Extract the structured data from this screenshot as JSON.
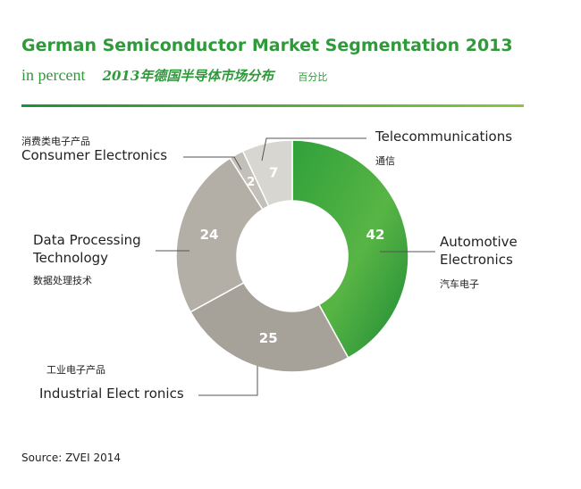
{
  "header": {
    "title": "German Semiconductor Market Segmentation 2013",
    "unit_en": "in percent",
    "title_cn": "2013年德国半导体市场分布",
    "unit_cn": "百分比"
  },
  "source": "Source: ZVEI 2014",
  "colors": {
    "title": "#2e9a3a",
    "automotive": "#4cae3a",
    "industrial": "#a6a29a",
    "data_processing": "#b3afa7",
    "consumer": "#c3c0b9",
    "telecommunications": "#d8d6d0"
  },
  "chart_data": {
    "type": "pie",
    "donut": true,
    "title": "German Semiconductor Market Segmentation 2013",
    "unit": "in percent",
    "slices": [
      {
        "name": "Automotive Electronics",
        "name_cn": "汽车电子",
        "value": 42,
        "label": "42"
      },
      {
        "name": "Industrial Electronics",
        "name_cn": "工业电子产品",
        "value": 25,
        "label": "25"
      },
      {
        "name": "Data Processing Technology",
        "name_cn": "数据处理技术",
        "value": 24,
        "label": "24"
      },
      {
        "name": "Consumer Electronics",
        "name_cn": "消费类电子产品",
        "value": 2,
        "label": "2"
      },
      {
        "name": "Telecommunications",
        "name_cn": "通信",
        "value": 7,
        "label": "7"
      }
    ]
  },
  "labels": {
    "telecom": {
      "en": "Telecommunications",
      "cn": "通信"
    },
    "consumer": {
      "en": "Consumer Electronics",
      "cn": "消费类电子产品"
    },
    "data_processing": {
      "en_line1": "Data Processing",
      "en_line2": "Technology",
      "cn": "数据处理技术"
    },
    "automotive": {
      "en_line1": "Automotive",
      "en_line2": "Electronics",
      "cn": "汽车电子"
    },
    "industrial": {
      "en": "Industrial Elect ronics",
      "cn": "工业电子产品"
    }
  }
}
